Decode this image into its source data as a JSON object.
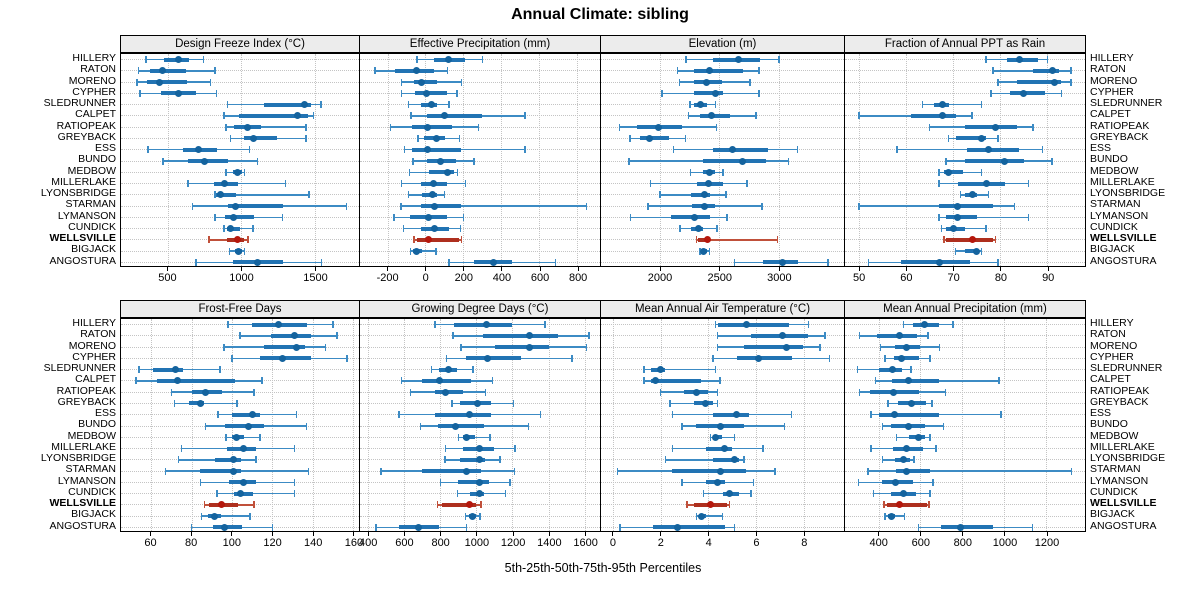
{
  "title": "Annual Climate: sibling",
  "caption": "5th-25th-50th-75th-95th Percentiles",
  "highlight_station": "WELLSVILLE",
  "stations": [
    "HILLERY",
    "RATON",
    "MORENO",
    "CYPHER",
    "SLEDRUNNER",
    "CALPET",
    "RATIOPEAK",
    "GREYBACK",
    "ESS",
    "BUNDO",
    "MEDBOW",
    "MILLERLAKE",
    "LYONSBRIDGE",
    "STARMAN",
    "LYMANSON",
    "CUNDICK",
    "WELLSVILLE",
    "BIGJACK",
    "ANGOSTURA"
  ],
  "colors": {
    "blue_whisker": "#3c8bc4",
    "blue_bar": "#2173b3",
    "blue_dot": "#14639e",
    "red_whisker": "#c0503a",
    "red_bar": "#ae2f1e",
    "red_dot": "#b5170c",
    "strip_bg": "#ececec",
    "grid": "#c4c4c4",
    "border": "#000000"
  },
  "chart_data": [
    {
      "type": "percentile-dotplot",
      "title": "Design Freeze Index (°C)",
      "ticks": [
        500,
        1000,
        1500
      ],
      "domain": [
        180,
        1800
      ],
      "percentile_labels": [
        "5th",
        "25th",
        "50th",
        "75th",
        "95th"
      ],
      "values": [
        [
          350,
          470,
          570,
          645,
          740
        ],
        [
          300,
          380,
          460,
          620,
          820
        ],
        [
          290,
          360,
          440,
          630,
          790
        ],
        [
          310,
          450,
          570,
          690,
          830
        ],
        [
          905,
          1150,
          1430,
          1475,
          1540
        ],
        [
          880,
          980,
          1380,
          1450,
          1490
        ],
        [
          895,
          950,
          1040,
          1135,
          1440
        ],
        [
          925,
          1020,
          1080,
          1245,
          1440
        ],
        [
          365,
          600,
          710,
          835,
          1055
        ],
        [
          465,
          635,
          745,
          910,
          1110
        ],
        [
          895,
          940,
          975,
          1005,
          1020
        ],
        [
          635,
          810,
          885,
          975,
          1300
        ],
        [
          820,
          830,
          860,
          965,
          1460
        ],
        [
          665,
          910,
          960,
          1280,
          1715
        ],
        [
          820,
          885,
          945,
          1085,
          1280
        ],
        [
          880,
          900,
          925,
          990,
          1080
        ],
        [
          780,
          900,
          970,
          1020,
          1045
        ],
        [
          920,
          955,
          980,
          1005,
          1020
        ],
        [
          690,
          945,
          1110,
          1280,
          1545
        ]
      ]
    },
    {
      "type": "percentile-dotplot",
      "title": "Effective Precipitation (mm)",
      "ticks": [
        -200,
        0,
        200,
        400,
        600,
        800
      ],
      "domain": [
        -345,
        920
      ],
      "values": [
        [
          -45,
          45,
          120,
          210,
          300
        ],
        [
          -265,
          -160,
          -45,
          45,
          115
        ],
        [
          -125,
          -60,
          -20,
          60,
          190
        ],
        [
          -125,
          -55,
          5,
          115,
          165
        ],
        [
          -90,
          -25,
          30,
          60,
          125
        ],
        [
          -75,
          10,
          100,
          300,
          525
        ],
        [
          -185,
          -70,
          10,
          140,
          280
        ],
        [
          -40,
          -10,
          60,
          105,
          180
        ],
        [
          -110,
          -70,
          10,
          185,
          525
        ],
        [
          -65,
          10,
          80,
          160,
          255
        ],
        [
          -85,
          20,
          115,
          150,
          170
        ],
        [
          -125,
          -25,
          40,
          115,
          210
        ],
        [
          -90,
          -20,
          35,
          60,
          100
        ],
        [
          -130,
          -25,
          50,
          185,
          850
        ],
        [
          -165,
          -80,
          15,
          115,
          200
        ],
        [
          -115,
          -25,
          50,
          125,
          185
        ],
        [
          -60,
          -45,
          15,
          175,
          190
        ],
        [
          -80,
          -65,
          -45,
          -20,
          55
        ],
        [
          125,
          255,
          360,
          455,
          685
        ]
      ]
    },
    {
      "type": "percentile-dotplot",
      "title": "Elevation (m)",
      "ticks": [
        2000,
        2500,
        3000
      ],
      "domain": [
        1505,
        3550
      ],
      "values": [
        [
          2220,
          2445,
          2665,
          2845,
          3005
        ],
        [
          2150,
          2290,
          2420,
          2700,
          2835
        ],
        [
          2165,
          2285,
          2390,
          2520,
          2760
        ],
        [
          2020,
          2285,
          2465,
          2530,
          2835
        ],
        [
          2255,
          2290,
          2345,
          2395,
          2470
        ],
        [
          2240,
          2340,
          2435,
          2590,
          2810
        ],
        [
          1660,
          1805,
          1990,
          2185,
          2475
        ],
        [
          1750,
          1835,
          1915,
          2075,
          2215
        ],
        [
          2115,
          2450,
          2610,
          2910,
          3160
        ],
        [
          1740,
          2365,
          2700,
          2895,
          3085
        ],
        [
          2260,
          2365,
          2420,
          2465,
          2530
        ],
        [
          1920,
          2310,
          2410,
          2530,
          2735
        ],
        [
          2000,
          2260,
          2380,
          2420,
          2555
        ],
        [
          1900,
          2270,
          2380,
          2465,
          2860
        ],
        [
          1755,
          2095,
          2290,
          2420,
          2565
        ],
        [
          2170,
          2260,
          2325,
          2365,
          2480
        ],
        [
          2310,
          2325,
          2400,
          2420,
          2990
        ],
        [
          2340,
          2355,
          2370,
          2400,
          2420
        ],
        [
          2630,
          2870,
          3030,
          3165,
          3415
        ]
      ]
    },
    {
      "type": "percentile-dotplot",
      "title": "Fraction of Annual PPT as Rain",
      "ticks": [
        50,
        60,
        70,
        80,
        90
      ],
      "domain": [
        47,
        98
      ],
      "values": [
        [
          77,
          81.5,
          84,
          88,
          90
        ],
        [
          78.5,
          87,
          91,
          92.5,
          95
        ],
        [
          79.5,
          83.5,
          91.5,
          93,
          95
        ],
        [
          78,
          82,
          85,
          89.5,
          93
        ],
        [
          63.5,
          66,
          67.8,
          69.2,
          76
        ],
        [
          50,
          61,
          67.8,
          70.5,
          74
        ],
        [
          65,
          72.5,
          79,
          83.5,
          87
        ],
        [
          69,
          70.5,
          76,
          77,
          79.5
        ],
        [
          58,
          73,
          77.5,
          84,
          89
        ],
        [
          68.5,
          72.5,
          81,
          85,
          91
        ],
        [
          67,
          68,
          69,
          72,
          76
        ],
        [
          67,
          71,
          77,
          81,
          86
        ],
        [
          71.5,
          72.5,
          74,
          75,
          77.5
        ],
        [
          50,
          67,
          71,
          78.5,
          83
        ],
        [
          67,
          68.5,
          71,
          75,
          86
        ],
        [
          67.5,
          68.5,
          70,
          72.5,
          77
        ],
        [
          68,
          68.5,
          74,
          78.5,
          79
        ],
        [
          70.5,
          72.5,
          75,
          75.5,
          76
        ],
        [
          52,
          59,
          67,
          73.5,
          79.5
        ]
      ]
    },
    {
      "type": "percentile-dotplot",
      "title": "Frost-Free Days",
      "ticks": [
        60,
        80,
        100,
        120,
        140,
        160
      ],
      "domain": [
        45,
        163
      ],
      "values": [
        [
          98,
          110,
          123,
          137,
          150
        ],
        [
          104,
          119.5,
          131,
          139,
          152
        ],
        [
          96,
          116,
          132,
          136,
          146.5
        ],
        [
          100,
          114,
          125,
          139,
          157
        ],
        [
          54,
          61,
          72,
          75.5,
          94
        ],
        [
          52.5,
          63,
          73,
          101.5,
          115
        ],
        [
          70,
          80,
          87,
          95,
          111
        ],
        [
          71.5,
          78.5,
          84.5,
          86,
          102.5
        ],
        [
          93,
          100,
          110,
          114,
          132
        ],
        [
          87,
          96.5,
          108,
          116,
          137
        ],
        [
          97,
          100,
          102.5,
          106,
          114
        ],
        [
          75,
          97.5,
          105.5,
          112,
          131
        ],
        [
          73.5,
          91.5,
          101,
          104.5,
          112
        ],
        [
          67,
          84,
          101,
          104.5,
          138
        ],
        [
          84.5,
          98.5,
          105.5,
          112,
          131
        ],
        [
          92.5,
          101,
          104,
          110.5,
          131
        ],
        [
          86.5,
          88.5,
          95,
          103,
          111
        ],
        [
          85,
          88,
          91.5,
          94.5,
          109
        ],
        [
          80,
          90.5,
          96.5,
          105,
          120
        ]
      ]
    },
    {
      "type": "percentile-dotplot",
      "title": "Growing Degree Days (°C)",
      "ticks": [
        400,
        600,
        800,
        1000,
        1200,
        1400,
        1600
      ],
      "domain": [
        355,
        1685
      ],
      "values": [
        [
          770,
          875,
          1055,
          1200,
          1380
        ],
        [
          870,
          1035,
          1295,
          1455,
          1625
        ],
        [
          915,
          1105,
          1295,
          1400,
          1610
        ],
        [
          835,
          945,
          1060,
          1250,
          1530
        ],
        [
          750,
          795,
          845,
          890,
          980
        ],
        [
          585,
          700,
          795,
          970,
          1090
        ],
        [
          635,
          770,
          830,
          925,
          1050
        ],
        [
          865,
          910,
          1005,
          1080,
          1205
        ],
        [
          570,
          770,
          960,
          1080,
          1355
        ],
        [
          690,
          790,
          885,
          1045,
          1290
        ],
        [
          900,
          925,
          945,
          990,
          1075
        ],
        [
          830,
          925,
          1015,
          1095,
          1215
        ],
        [
          825,
          910,
          1015,
          1050,
          1130
        ],
        [
          470,
          700,
          945,
          1025,
          1210
        ],
        [
          800,
          900,
          1015,
          1070,
          1185
        ],
        [
          895,
          965,
          1015,
          1040,
          1160
        ],
        [
          785,
          810,
          960,
          1000,
          1025
        ],
        [
          940,
          960,
          980,
          1000,
          1020
        ],
        [
          445,
          570,
          680,
          795,
          945
        ]
      ]
    },
    {
      "type": "percentile-dotplot",
      "title": "Mean Annual Air Temperature (°C)",
      "ticks": [
        0,
        2,
        4,
        6,
        8
      ],
      "domain": [
        -0.5,
        9.7
      ],
      "values": [
        [
          4.3,
          4.4,
          5.6,
          7.4,
          8.2
        ],
        [
          4.4,
          5.8,
          7.1,
          8.2,
          8.9
        ],
        [
          4.4,
          5.5,
          7.3,
          8.0,
          8.7
        ],
        [
          4.2,
          5.2,
          6.1,
          7.5,
          9.1
        ],
        [
          1.3,
          1.6,
          2.0,
          2.2,
          4.3
        ],
        [
          1.3,
          1.6,
          1.8,
          3.7,
          4.5
        ],
        [
          2.0,
          3.0,
          3.5,
          4.0,
          4.4
        ],
        [
          2.4,
          3.4,
          3.9,
          4.2,
          4.4
        ],
        [
          2.5,
          4.2,
          5.2,
          5.7,
          7.5
        ],
        [
          2.9,
          3.5,
          4.5,
          5.5,
          7.2
        ],
        [
          4.1,
          4.2,
          4.3,
          4.6,
          5.1
        ],
        [
          2.5,
          3.9,
          4.7,
          5.0,
          6.3
        ],
        [
          2.2,
          4.2,
          5.1,
          5.3,
          5.5
        ],
        [
          0.2,
          2.5,
          4.5,
          5.6,
          6.8
        ],
        [
          2.9,
          3.9,
          4.4,
          4.7,
          5.9
        ],
        [
          3.8,
          4.6,
          4.9,
          5.3,
          5.8
        ],
        [
          3.1,
          3.4,
          4.1,
          4.8,
          4.9
        ],
        [
          3.5,
          3.6,
          3.7,
          3.9,
          4.6
        ],
        [
          0.3,
          1.7,
          2.7,
          4.7,
          5.1
        ]
      ]
    },
    {
      "type": "percentile-dotplot",
      "title": "Mean Annual Precipitation (mm)",
      "ticks": [
        400,
        600,
        800,
        1000,
        1200
      ],
      "domain": [
        240,
        1385
      ],
      "values": [
        [
          520,
          565,
          620,
          690,
          755
        ],
        [
          310,
          395,
          500,
          585,
          635
        ],
        [
          410,
          480,
          535,
          600,
          690
        ],
        [
          430,
          475,
          510,
          595,
          645
        ],
        [
          300,
          400,
          465,
          510,
          555
        ],
        [
          385,
          465,
          545,
          690,
          975
        ],
        [
          310,
          360,
          470,
          595,
          720
        ],
        [
          445,
          495,
          555,
          625,
          655
        ],
        [
          365,
          400,
          475,
          690,
          985
        ],
        [
          420,
          460,
          545,
          620,
          710
        ],
        [
          485,
          545,
          590,
          620,
          645
        ],
        [
          365,
          470,
          535,
          610,
          675
        ],
        [
          420,
          480,
          520,
          550,
          570
        ],
        [
          350,
          485,
          535,
          645,
          1320
        ],
        [
          305,
          415,
          480,
          565,
          660
        ],
        [
          375,
          460,
          520,
          580,
          645
        ],
        [
          425,
          440,
          500,
          630,
          640
        ],
        [
          430,
          445,
          460,
          480,
          525
        ],
        [
          590,
          700,
          790,
          945,
          1135
        ]
      ]
    }
  ]
}
